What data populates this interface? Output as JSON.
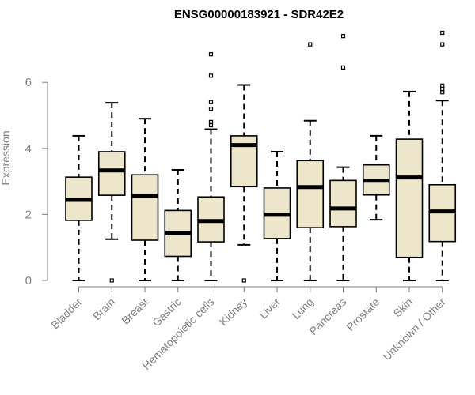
{
  "chart_data": {
    "type": "boxplot",
    "title": "ENSG00000183921 - SDR42E2",
    "xlabel": "",
    "ylabel": "Expression",
    "ylim": [
      0,
      7.6
    ],
    "yticks": [
      0,
      2,
      4,
      6
    ],
    "grid": false,
    "box_fill": "#ede6cb",
    "categories": [
      "Bladder",
      "Brain",
      "Breast",
      "Gastric",
      "Hematopoietic cells",
      "Kidney",
      "Liver",
      "Lung",
      "Pancreas",
      "Prostate",
      "Skin",
      "Unknown / Other"
    ],
    "boxes": [
      {
        "whisker_low": 0,
        "q1": 1.82,
        "median": 2.44,
        "q3": 3.13,
        "whisker_high": 4.38,
        "outliers": []
      },
      {
        "whisker_low": 1.25,
        "q1": 2.58,
        "median": 3.33,
        "q3": 3.9,
        "whisker_high": 5.38,
        "outliers": [
          0
        ]
      },
      {
        "whisker_low": 0,
        "q1": 1.22,
        "median": 2.56,
        "q3": 3.2,
        "whisker_high": 4.9,
        "outliers": []
      },
      {
        "whisker_low": 0,
        "q1": 0.73,
        "median": 1.44,
        "q3": 2.12,
        "whisker_high": 3.35,
        "outliers": []
      },
      {
        "whisker_low": 0,
        "q1": 1.17,
        "median": 1.8,
        "q3": 2.53,
        "whisker_high": 4.58,
        "outliers": [
          4.7,
          4.8,
          5.2,
          5.4,
          6.2,
          6.85
        ]
      },
      {
        "whisker_low": 1.08,
        "q1": 2.84,
        "median": 4.1,
        "q3": 4.38,
        "whisker_high": 5.92,
        "outliers": [
          0
        ]
      },
      {
        "whisker_low": 0,
        "q1": 1.27,
        "median": 1.99,
        "q3": 2.8,
        "whisker_high": 3.9,
        "outliers": []
      },
      {
        "whisker_low": 0,
        "q1": 1.6,
        "median": 2.83,
        "q3": 3.63,
        "whisker_high": 4.84,
        "outliers": [
          7.15
        ]
      },
      {
        "whisker_low": 0,
        "q1": 1.63,
        "median": 2.18,
        "q3": 3.03,
        "whisker_high": 3.43,
        "outliers": [
          6.45,
          7.4
        ]
      },
      {
        "whisker_low": 1.84,
        "q1": 2.59,
        "median": 3.02,
        "q3": 3.5,
        "whisker_high": 4.38,
        "outliers": []
      },
      {
        "whisker_low": 0,
        "q1": 0.7,
        "median": 3.12,
        "q3": 4.28,
        "whisker_high": 5.72,
        "outliers": []
      },
      {
        "whisker_low": 0,
        "q1": 1.18,
        "median": 2.09,
        "q3": 2.9,
        "whisker_high": 5.45,
        "outliers": [
          5.7,
          5.8,
          5.9,
          7.15,
          7.5
        ]
      }
    ]
  }
}
